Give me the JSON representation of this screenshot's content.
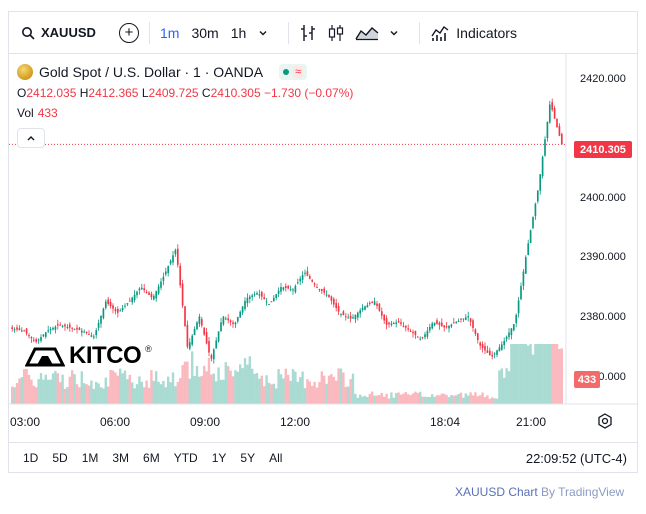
{
  "toolbar": {
    "symbol": "XAUUSD",
    "intervals": [
      "1m",
      "30m",
      "1h"
    ],
    "active_interval": "1m",
    "indicators_label": "Indicators"
  },
  "legend": {
    "title": "Gold Spot / U.S. Dollar · 1 · OANDA",
    "open_label": "O",
    "open": "2412.035",
    "high_label": "H",
    "high": "2412.365",
    "low_label": "L",
    "low": "2409.725",
    "close_label": "C",
    "close": "2410.305",
    "change": "−1.730 (−0.07%)",
    "vol_label": "Vol",
    "vol_value": "433",
    "pill_symbol": "≈"
  },
  "logo": {
    "text": "KITCO",
    "reg": "®"
  },
  "price_scale": {
    "labels": [
      "2420.000",
      "2400.000",
      "2390.000",
      "2380.000",
      "2370.000"
    ],
    "last_price": "2410.305",
    "volume_tag": "433"
  },
  "time_axis": {
    "labels": [
      "03:00",
      "06:00",
      "09:00",
      "12:00",
      "18:04",
      "21:00"
    ]
  },
  "range_bar": {
    "ranges": [
      "1D",
      "5D",
      "1M",
      "3M",
      "6M",
      "YTD",
      "1Y",
      "5Y",
      "All"
    ],
    "clock": "22:09:52 (UTC-4)"
  },
  "attribution": {
    "symbol": "XAUUSD Chart",
    "rest": "By TradingView"
  },
  "colors": {
    "up": "#089981",
    "down": "#f23645",
    "accent": "#2962ff"
  },
  "chart_data": {
    "type": "line",
    "title": "Gold Spot / U.S. Dollar · 1 · OANDA",
    "xlabel": "",
    "ylabel": "",
    "x": [
      "02:40",
      "03:00",
      "03:30",
      "04:00",
      "04:30",
      "05:00",
      "05:30",
      "06:00",
      "06:30",
      "07:00",
      "07:30",
      "08:00",
      "08:30",
      "09:00",
      "09:15",
      "09:30",
      "09:45",
      "10:00",
      "10:15",
      "10:30",
      "10:45",
      "11:00",
      "11:30",
      "12:00",
      "12:30",
      "13:00",
      "13:30",
      "14:00",
      "14:30",
      "15:00",
      "15:30",
      "16:00",
      "16:30",
      "17:00",
      "17:20",
      "18:04",
      "18:30",
      "19:00",
      "19:30",
      "20:00",
      "20:30",
      "20:45",
      "21:00",
      "21:15",
      "21:30",
      "21:45",
      "21:55",
      "22:05"
    ],
    "series": [
      {
        "values": [
          2378.8,
          2378.5,
          2376.5,
          2378.5,
          2379.5,
          2379.0,
          2378.5,
          2377.5,
          2383.5,
          2381.5,
          2383.5,
          2386.0,
          2384.0,
          2388.0,
          2392.5,
          2375.5,
          2381.0,
          2373.5,
          2381.0,
          2379.5,
          2384.0,
          2385.0,
          2383.0,
          2386.0,
          2385.5,
          2388.5,
          2386.0,
          2384.5,
          2381.5,
          2380.5,
          2382.5,
          2383.5,
          2379.5,
          2380.0,
          2378.5,
          2377.0,
          2380.0,
          2379.0,
          2380.0,
          2381.0,
          2376.0,
          2374.0,
          2376.5,
          2380.0,
          2392.0,
          2403.0,
          2417.5,
          2410.3
        ]
      }
    ],
    "volume": {
      "last": 433
    },
    "ylim": [
      2366,
      2423
    ],
    "price_ticks": [
      2420,
      2410,
      2400,
      2390,
      2380,
      2370
    ],
    "last_price": 2410.305,
    "grid": false,
    "legend": "top-left"
  }
}
